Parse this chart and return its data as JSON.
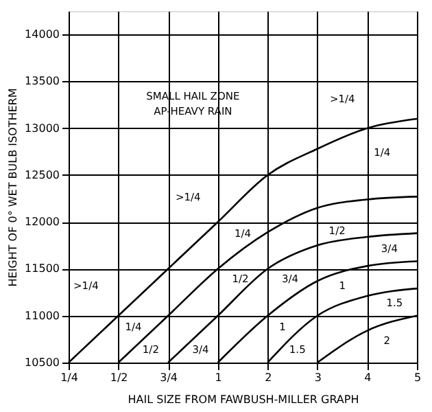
{
  "chart_data": {
    "type": "line",
    "xlabel": "HAIL SIZE FROM FAWBUSH-MILLER GRAPH",
    "ylabel": "HEIGHT OF 0° WET BULB ISOTHERM",
    "categories": [
      "1/4",
      "1/2",
      "3/4",
      "1",
      "2",
      "3",
      "4",
      "5"
    ],
    "ylim": [
      10500,
      14250
    ],
    "yticks": [
      10500,
      11000,
      11500,
      12000,
      12500,
      13000,
      13500,
      14000
    ],
    "grid": true,
    "legend": false,
    "marker": "none",
    "line_style": "solid",
    "series": [
      {
        "color": "#000000",
        "values": [
          10500,
          11000,
          11500,
          12000,
          12500,
          12780,
          13000,
          13100
        ]
      },
      {
        "color": "#000000",
        "values": [
          null,
          10500,
          11000,
          11500,
          11890,
          12150,
          12240,
          12270
        ]
      },
      {
        "color": "#000000",
        "values": [
          null,
          null,
          10500,
          11000,
          11500,
          11750,
          11840,
          11880
        ]
      },
      {
        "color": "#000000",
        "values": [
          null,
          null,
          null,
          10500,
          11000,
          11370,
          11530,
          11580
        ]
      },
      {
        "color": "#000000",
        "values": [
          null,
          null,
          null,
          null,
          10500,
          11000,
          11210,
          11290
        ]
      },
      {
        "color": "#000000",
        "values": [
          null,
          null,
          null,
          null,
          null,
          10500,
          10840,
          11000
        ]
      }
    ],
    "annotations": [
      "SMALL HAIL ZONE",
      "AP-HEAVY RAIN",
      ">1/4",
      "1/4",
      ">1/4",
      "1/4",
      "1/2",
      "3/4",
      ">1/4",
      "1/2",
      "3/4",
      "1",
      "1.5",
      "1/4",
      "1/2",
      "3/4",
      "1",
      "1.5",
      "2"
    ]
  }
}
